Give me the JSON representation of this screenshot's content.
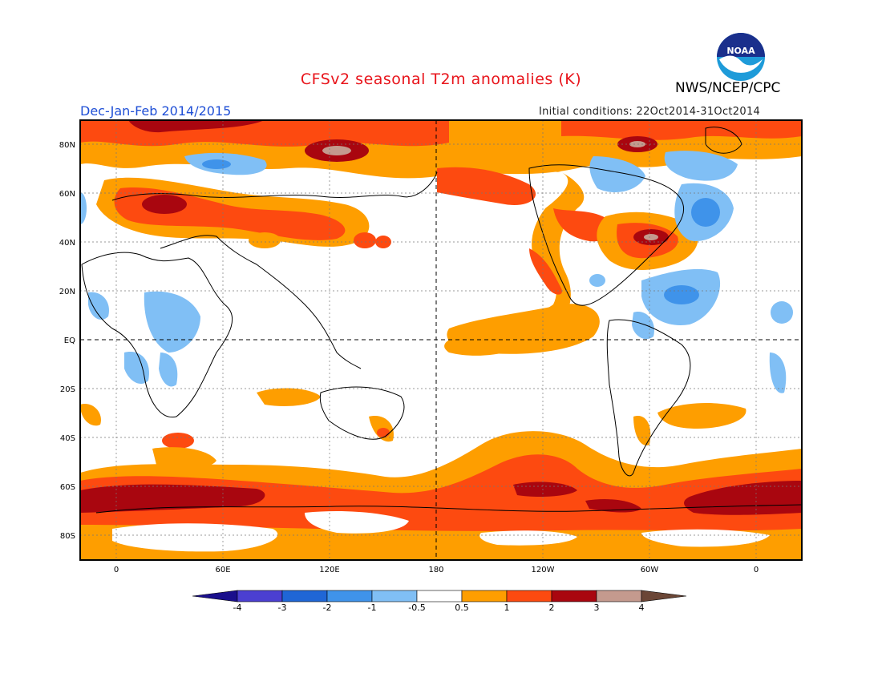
{
  "header": {
    "title": "CFSv2 seasonal T2m anomalies (K)",
    "organization": "NWS/NCEP/CPC",
    "season": "Dec-Jan-Feb 2014/2015",
    "initial_conditions": "Initial conditions: 22Oct2014-31Oct2014",
    "logo_text": "NOAA"
  },
  "map": {
    "lat_labels": [
      "80N",
      "60N",
      "40N",
      "20N",
      "EQ",
      "20S",
      "40S",
      "60S",
      "80S"
    ],
    "lon_labels": [
      "0",
      "60E",
      "120E",
      "180",
      "120W",
      "60W",
      "0"
    ]
  },
  "colorbar": {
    "labels": [
      "-4",
      "-3",
      "-2",
      "-1",
      "-0.5",
      "0.5",
      "1",
      "2",
      "3",
      "4"
    ],
    "colors": [
      "#1a0f8c",
      "#4b3fd1",
      "#1f66d6",
      "#3f93ea",
      "#80bff5",
      "#ffffff",
      "#fe9e00",
      "#fd4a10",
      "#a9060f",
      "#c49a8e",
      "#6b4636"
    ]
  }
}
